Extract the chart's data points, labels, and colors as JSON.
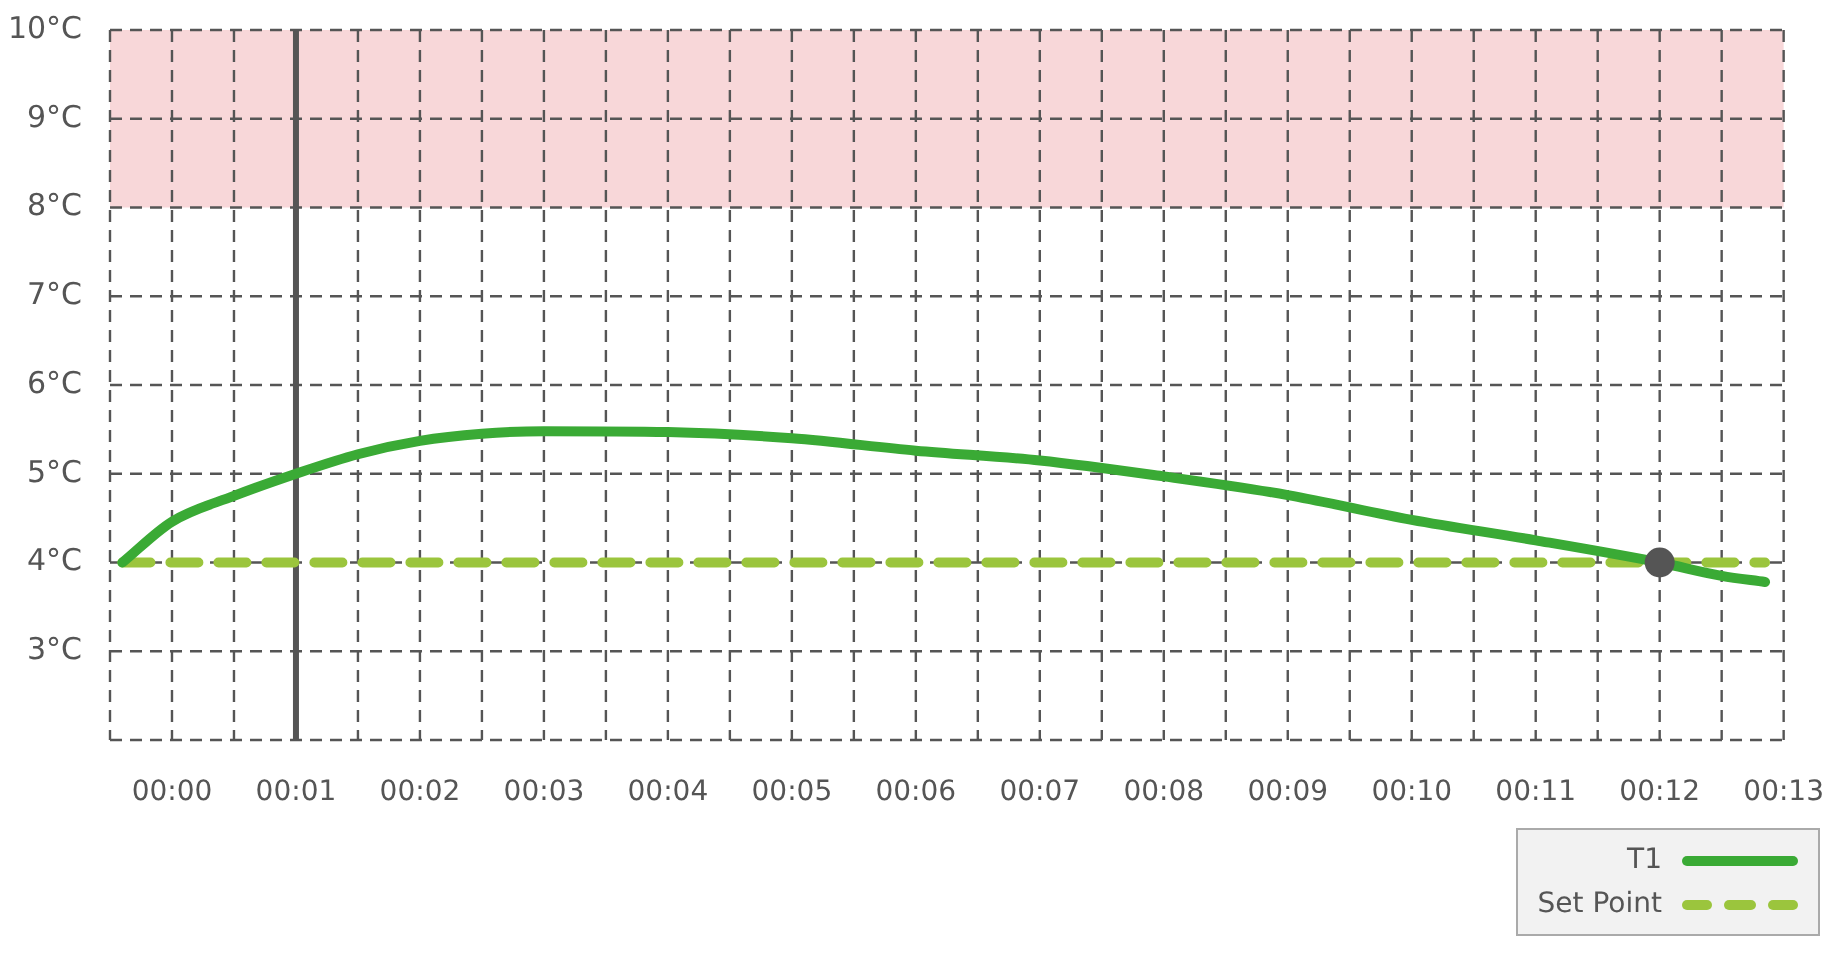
{
  "chart_data": {
    "type": "line",
    "xlim": [
      -0.5,
      13
    ],
    "xticks": [
      {
        "value": -0.5,
        "label": null
      },
      {
        "value": 0,
        "label": "00:00"
      },
      {
        "value": 0.5,
        "label": null
      },
      {
        "value": 1,
        "label": "00:01"
      },
      {
        "value": 1.5,
        "label": null
      },
      {
        "value": 2,
        "label": "00:02"
      },
      {
        "value": 2.5,
        "label": null
      },
      {
        "value": 3,
        "label": "00:03"
      },
      {
        "value": 3.5,
        "label": null
      },
      {
        "value": 4,
        "label": "00:04"
      },
      {
        "value": 4.5,
        "label": null
      },
      {
        "value": 5,
        "label": "00:05"
      },
      {
        "value": 5.5,
        "label": null
      },
      {
        "value": 6,
        "label": "00:06"
      },
      {
        "value": 6.5,
        "label": null
      },
      {
        "value": 7,
        "label": "00:07"
      },
      {
        "value": 7.5,
        "label": null
      },
      {
        "value": 8,
        "label": "00:08"
      },
      {
        "value": 8.5,
        "label": null
      },
      {
        "value": 9,
        "label": "00:09"
      },
      {
        "value": 9.5,
        "label": null
      },
      {
        "value": 10,
        "label": "00:10"
      },
      {
        "value": 10.5,
        "label": null
      },
      {
        "value": 11,
        "label": "00:11"
      },
      {
        "value": 11.5,
        "label": null
      },
      {
        "value": 12,
        "label": "00:12"
      },
      {
        "value": 12.5,
        "label": null
      },
      {
        "value": 13,
        "label": "00:13"
      }
    ],
    "ylim": [
      2,
      10
    ],
    "yticks": [
      {
        "value": 2,
        "label": null
      },
      {
        "value": 3,
        "label": "3°C"
      },
      {
        "value": 4,
        "label": "4°C"
      },
      {
        "value": 5,
        "label": "5°C"
      },
      {
        "value": 6,
        "label": "6°C"
      },
      {
        "value": 7,
        "label": "7°C"
      },
      {
        "value": 8,
        "label": "8°C"
      },
      {
        "value": 9,
        "label": "9°C"
      },
      {
        "value": 10,
        "label": "10°C"
      }
    ],
    "grid": true,
    "legend": "bottom right",
    "series": [
      {
        "name": "T1",
        "color": "#3aaa35",
        "x": [
          -0.4,
          0,
          0.5,
          1,
          1.5,
          2,
          2.5,
          3,
          4,
          5,
          6,
          7,
          8,
          9,
          10,
          11,
          12,
          12.5,
          12.85
        ],
        "values": [
          4.0,
          4.46,
          4.75,
          5.0,
          5.22,
          5.37,
          5.45,
          5.48,
          5.47,
          5.4,
          5.26,
          5.15,
          4.97,
          4.76,
          4.48,
          4.25,
          4.0,
          3.85,
          3.78
        ]
      },
      {
        "name": "Set Point",
        "color": "#9bc53d",
        "line_style": "dashed",
        "x": [
          -0.4,
          12.85
        ],
        "values": [
          4,
          4
        ]
      },
      {
        "type": "scatter",
        "color": "#555555",
        "x": [
          12
        ],
        "values": [
          4
        ]
      }
    ],
    "ref_lines": [
      {
        "axis": "x",
        "value": 1,
        "color": "#555555"
      }
    ],
    "bands": [
      {
        "axis": "y",
        "from": 8,
        "to": 10,
        "color": "#f8d7d9"
      }
    ]
  }
}
